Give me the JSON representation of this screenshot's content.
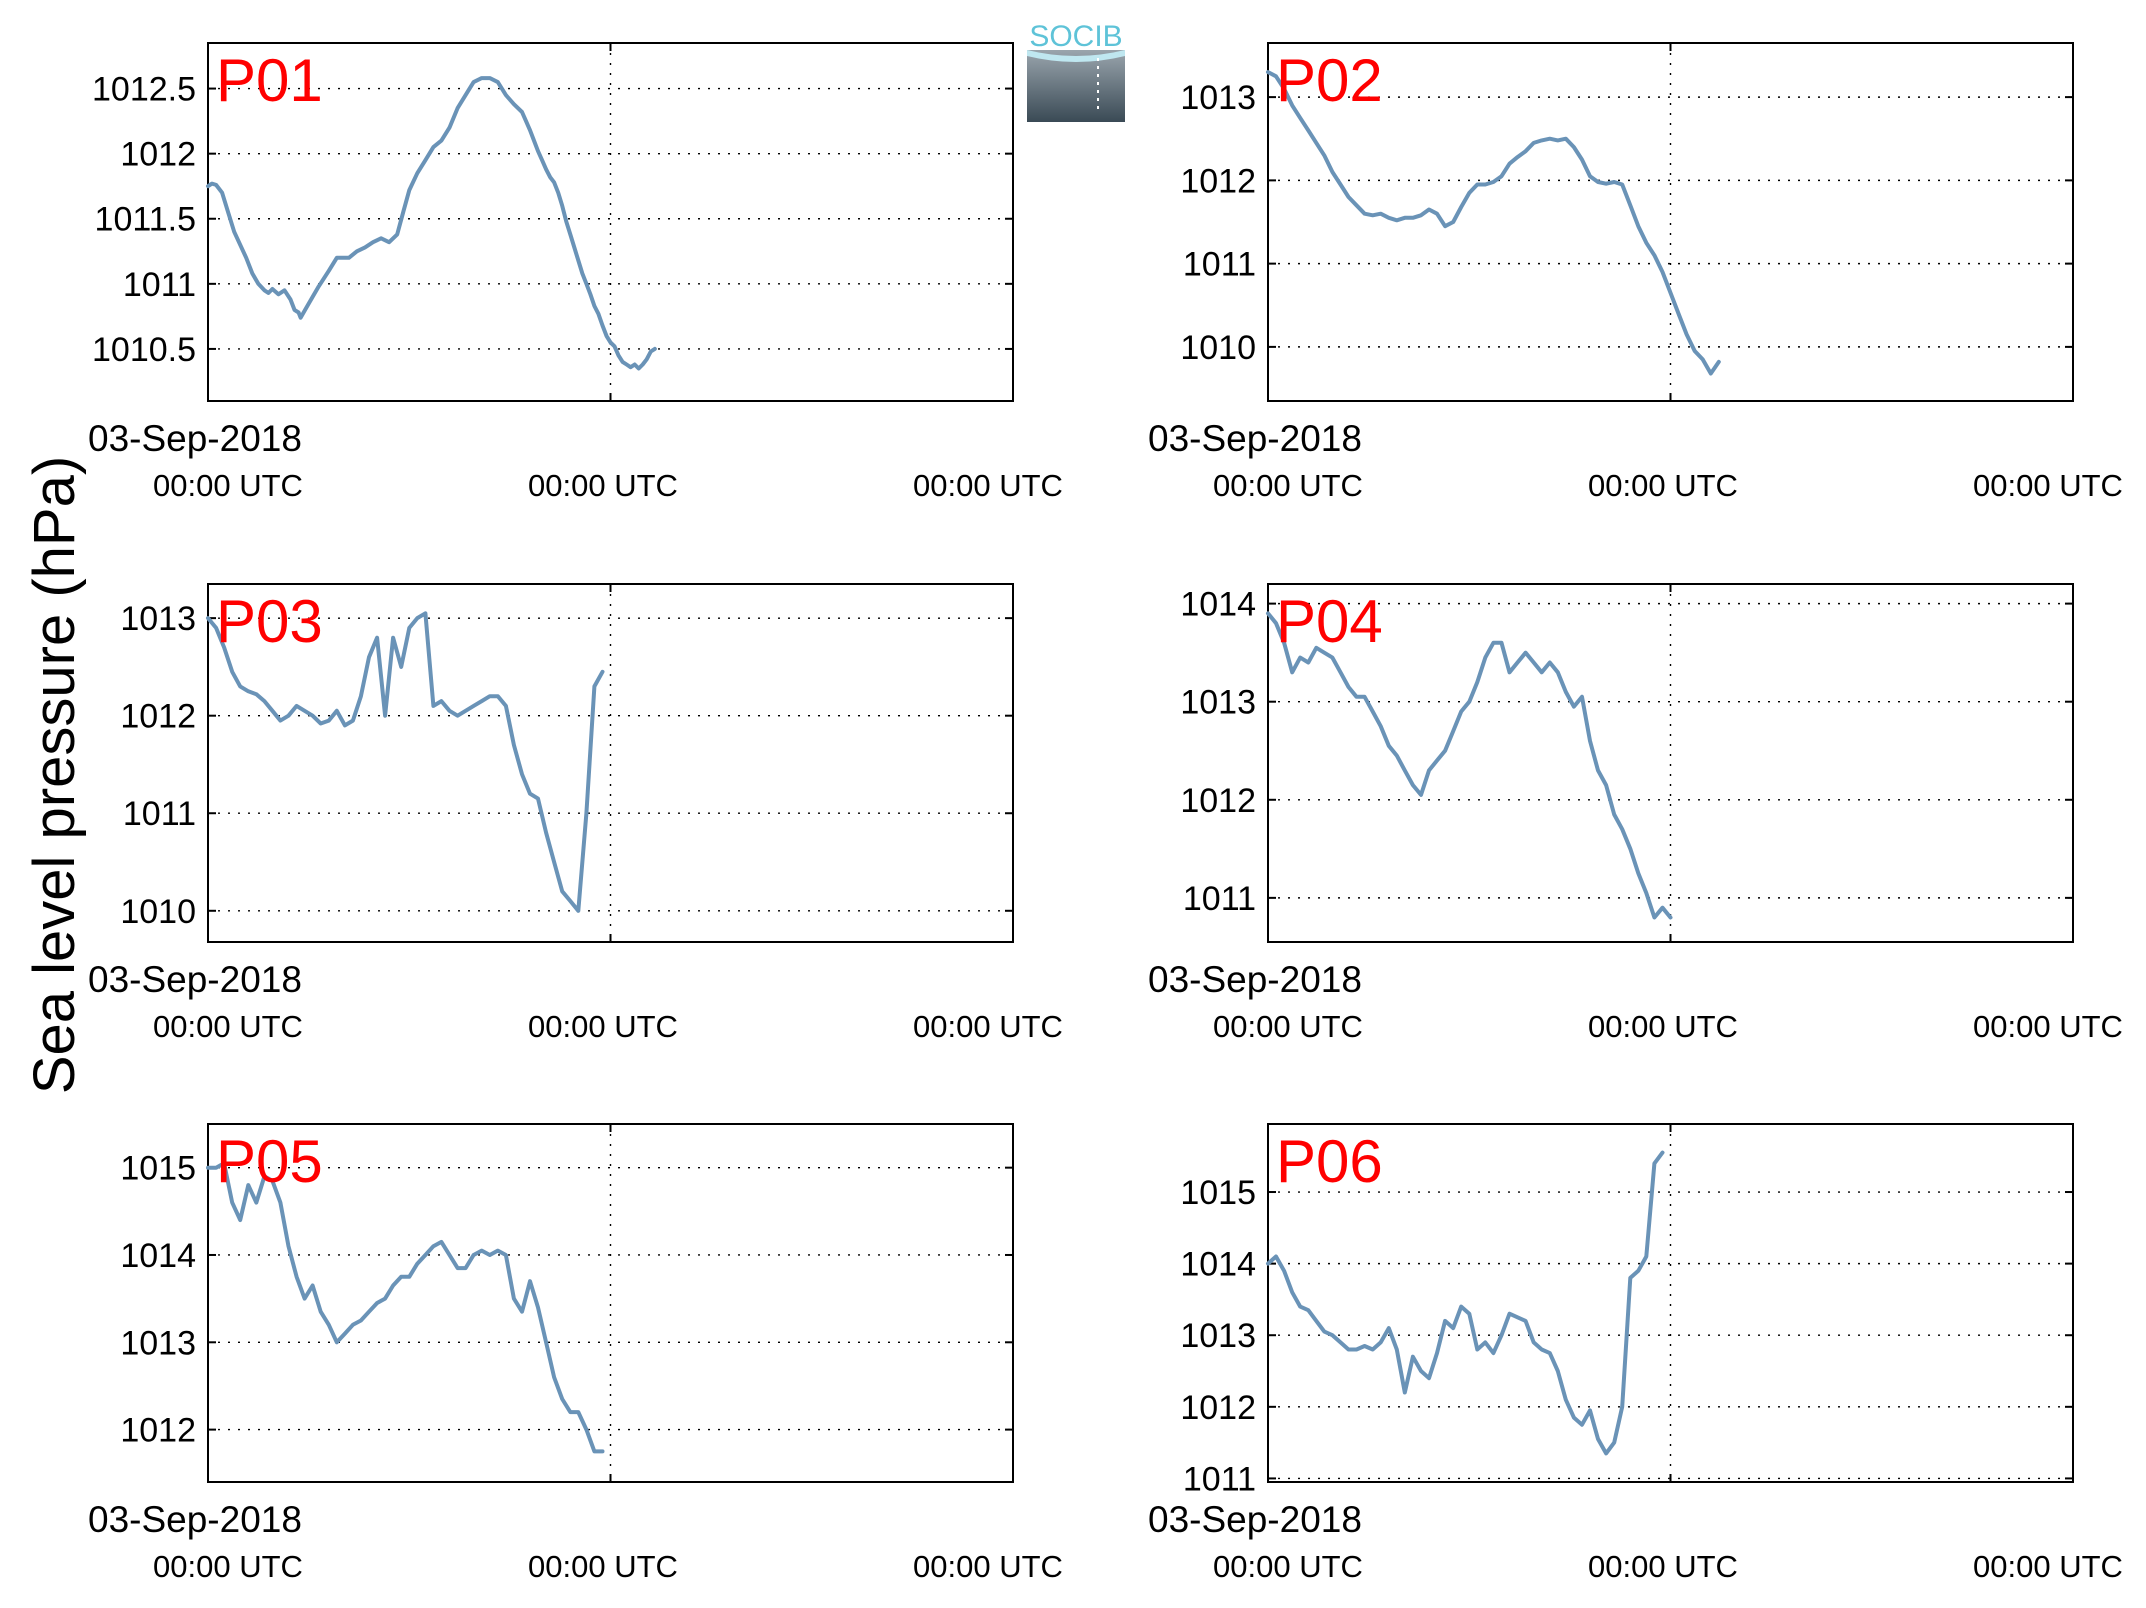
{
  "figure": {
    "ylabel": "Sea level pressure (hPa)",
    "logo_text": "SOCIB",
    "line_color": "#6a93b7",
    "panel_label_color": "#ff0000"
  },
  "chart_data": [
    {
      "type": "line",
      "name": "P01",
      "date_label": "03-Sep-2018",
      "x_ticks": [
        "00:00 UTC",
        "00:00 UTC",
        "00:00 UTC"
      ],
      "ylim": [
        1010.1,
        1012.85
      ],
      "yticks": [
        1010.5,
        1011,
        1011.5,
        1012,
        1012.5
      ],
      "ytick_labels": [
        "1010.5",
        "1011",
        "1011.5",
        "1012",
        "1012.5"
      ],
      "grid": true,
      "x": [
        0,
        0.1,
        0.2,
        0.35,
        0.5,
        0.65,
        0.8,
        0.95,
        1.1,
        1.25,
        1.4,
        1.5,
        1.6,
        1.75,
        1.9,
        2.05,
        2.15,
        2.25,
        2.3,
        2.45,
        2.6,
        2.75,
        3.0,
        3.2,
        3.5,
        3.7,
        3.9,
        4.1,
        4.3,
        4.5,
        4.7,
        4.85,
        5.0,
        5.2,
        5.4,
        5.6,
        5.8,
        6.0,
        6.2,
        6.4,
        6.6,
        6.8,
        7.0,
        7.2,
        7.4,
        7.6,
        7.8,
        7.9,
        8.0,
        8.1,
        8.2,
        8.3,
        8.4,
        8.5,
        8.6,
        8.7,
        8.8,
        8.9,
        9.0,
        9.1,
        9.2,
        9.3,
        9.4,
        9.5,
        9.6,
        9.7,
        9.8,
        9.9,
        10.0,
        10.1,
        10.2,
        10.3,
        10.4,
        10.5,
        10.6,
        10.7,
        10.8,
        10.9,
        11.0,
        11.1,
        11.2,
        11.3,
        11.4,
        11.5,
        11.6,
        11.7,
        11.8,
        11.9,
        12.0,
        12.1,
        12.2,
        12.3,
        12.4,
        12.5,
        12.6,
        12.7,
        12.8,
        12.9,
        13.0,
        13.1,
        13.2,
        13.3
      ],
      "y": [
        1011.75,
        1011.77,
        1011.76,
        1011.7,
        1011.55,
        1011.4,
        1011.3,
        1011.2,
        1011.08,
        1011.0,
        1010.95,
        1010.93,
        1010.96,
        1010.92,
        1010.95,
        1010.88,
        1010.8,
        1010.78,
        1010.74,
        1010.82,
        1010.9,
        1010.98,
        1011.1,
        1011.2,
        1011.2,
        1011.25,
        1011.28,
        1011.32,
        1011.35,
        1011.32,
        1011.38,
        1011.55,
        1011.72,
        1011.85,
        1011.95,
        1012.05,
        1012.1,
        1012.2,
        1012.35,
        1012.45,
        1012.55,
        1012.58,
        1012.58,
        1012.55,
        1012.45,
        1012.38,
        1012.32,
        1012.25,
        1012.18,
        1012.1,
        1012.02,
        1011.95,
        1011.88,
        1011.82,
        1011.78,
        1011.7,
        1011.6,
        1011.48,
        1011.38,
        1011.28,
        1011.18,
        1011.08,
        1011.0,
        1010.92,
        1010.83,
        1010.77,
        1010.68,
        1010.6,
        1010.55,
        1010.52,
        1010.45,
        1010.4,
        1010.38,
        1010.36,
        1010.38,
        1010.35,
        1010.38,
        1010.42,
        1010.48,
        1010.5,
        1010.5,
        1010.5,
        1010.5,
        1010.5,
        1010.5,
        1010.5,
        1010.5,
        1010.5,
        1010.5,
        1010.5,
        1010.5,
        1010.5,
        1010.5,
        1010.5,
        1010.5,
        1010.5,
        1010.5,
        1010.5,
        1010.5,
        1010.5,
        1010.5,
        1010.5
      ],
      "n_valid": 80
    },
    {
      "type": "line",
      "name": "P02",
      "date_label": "03-Sep-2018",
      "x_ticks": [
        "00:00 UTC",
        "00:00 UTC",
        "00:00 UTC"
      ],
      "ylim": [
        1009.35,
        1013.65
      ],
      "yticks": [
        1010,
        1011,
        1012,
        1013
      ],
      "ytick_labels": [
        "1010",
        "1011",
        "1012",
        "1013"
      ],
      "grid": true,
      "x": [
        0,
        0.2,
        0.4,
        0.6,
        0.8,
        1.0,
        1.2,
        1.4,
        1.6,
        1.8,
        2.0,
        2.2,
        2.4,
        2.6,
        2.8,
        3.0,
        3.2,
        3.4,
        3.6,
        3.8,
        4.0,
        4.2,
        4.4,
        4.6,
        4.8,
        5.0,
        5.2,
        5.4,
        5.6,
        5.8,
        6.0,
        6.2,
        6.4,
        6.6,
        6.8,
        7.0,
        7.2,
        7.4,
        7.6,
        7.8,
        8.0,
        8.2,
        8.4,
        8.6,
        8.8,
        9.0,
        9.2,
        9.4,
        9.6,
        9.8,
        10.0,
        10.2,
        10.4,
        10.6,
        10.8,
        11.0,
        11.2,
        11.4,
        11.6,
        11.8,
        12.0,
        12.2,
        12.4,
        12.6,
        12.8,
        13.0,
        13.2
      ],
      "y": [
        1013.3,
        1013.25,
        1013.1,
        1012.9,
        1012.75,
        1012.6,
        1012.45,
        1012.3,
        1012.1,
        1011.95,
        1011.8,
        1011.7,
        1011.6,
        1011.58,
        1011.6,
        1011.55,
        1011.52,
        1011.55,
        1011.55,
        1011.58,
        1011.65,
        1011.6,
        1011.45,
        1011.5,
        1011.68,
        1011.85,
        1011.95,
        1011.95,
        1011.98,
        1012.05,
        1012.2,
        1012.28,
        1012.35,
        1012.45,
        1012.48,
        1012.5,
        1012.48,
        1012.5,
        1012.4,
        1012.25,
        1012.05,
        1011.98,
        1011.96,
        1011.98,
        1011.95,
        1011.7,
        1011.45,
        1011.25,
        1011.1,
        1010.9,
        1010.65,
        1010.4,
        1010.15,
        1009.95,
        1009.85,
        1009.68,
        1009.82,
        1009.82,
        1009.82,
        1009.82,
        1009.82,
        1009.82,
        1009.82,
        1009.82,
        1009.82,
        1009.82,
        1009.82
      ],
      "n_valid": 57
    },
    {
      "type": "line",
      "name": "P03",
      "date_label": "03-Sep-2018",
      "x_ticks": [
        "00:00 UTC",
        "00:00 UTC",
        "00:00 UTC"
      ],
      "ylim": [
        1009.68,
        1013.35
      ],
      "yticks": [
        1010,
        1011,
        1012,
        1013
      ],
      "ytick_labels": [
        "1010",
        "1011",
        "1012",
        "1013"
      ],
      "grid": true,
      "x": [
        0,
        0.2,
        0.4,
        0.6,
        0.8,
        1.0,
        1.2,
        1.4,
        1.6,
        1.8,
        2.0,
        2.2,
        2.4,
        2.6,
        2.8,
        3.0,
        3.2,
        3.4,
        3.6,
        3.8,
        4.0,
        4.2,
        4.4,
        4.6,
        4.8,
        5.0,
        5.2,
        5.4,
        5.6,
        5.8,
        6.0,
        6.2,
        6.4,
        6.6,
        6.8,
        7.0,
        7.2,
        7.4,
        7.6,
        7.8,
        8.0,
        8.2,
        8.4,
        8.6,
        8.8,
        9.0,
        9.2,
        9.4,
        9.6,
        9.8,
        10.0,
        10.2,
        10.4,
        10.6,
        10.8,
        11.0,
        11.2,
        11.4,
        11.6,
        11.8,
        12.0,
        12.2,
        12.4,
        12.6,
        12.8,
        13.0,
        13.2
      ],
      "y": [
        1013.0,
        1012.9,
        1012.7,
        1012.45,
        1012.3,
        1012.25,
        1012.22,
        1012.15,
        1012.05,
        1011.95,
        1012.0,
        1012.1,
        1012.05,
        1012.0,
        1011.92,
        1011.95,
        1012.05,
        1011.9,
        1011.95,
        1012.2,
        1012.6,
        1012.8,
        1012.0,
        1012.8,
        1012.5,
        1012.9,
        1013.0,
        1013.05,
        1012.1,
        1012.15,
        1012.05,
        1012.0,
        1012.05,
        1012.1,
        1012.15,
        1012.2,
        1012.2,
        1012.1,
        1011.7,
        1011.4,
        1011.2,
        1011.15,
        1010.8,
        1010.5,
        1010.2,
        1010.1,
        1010.0,
        1011.0,
        1012.3,
        1012.45,
        1012.45,
        1012.45,
        1012.45,
        1012.45,
        1012.45,
        1012.45,
        1012.45,
        1012.45,
        1012.45,
        1012.45,
        1012.45,
        1012.45,
        1012.45,
        1012.45,
        1012.45,
        1012.45,
        1012.45
      ],
      "n_valid": 50
    },
    {
      "type": "line",
      "name": "P04",
      "date_label": "03-Sep-2018",
      "x_ticks": [
        "00:00 UTC",
        "00:00 UTC",
        "00:00 UTC"
      ],
      "ylim": [
        1010.55,
        1014.2
      ],
      "yticks": [
        1011,
        1012,
        1013,
        1014
      ],
      "ytick_labels": [
        "1011",
        "1012",
        "1013",
        "1014"
      ],
      "grid": true,
      "x": [
        0,
        0.2,
        0.4,
        0.6,
        0.8,
        1.0,
        1.2,
        1.4,
        1.6,
        1.8,
        2.0,
        2.2,
        2.4,
        2.6,
        2.8,
        3.0,
        3.2,
        3.4,
        3.6,
        3.8,
        4.0,
        4.2,
        4.4,
        4.6,
        4.8,
        5.0,
        5.2,
        5.4,
        5.6,
        5.8,
        6.0,
        6.2,
        6.4,
        6.6,
        6.8,
        7.0,
        7.2,
        7.4,
        7.6,
        7.8,
        8.0,
        8.2,
        8.4,
        8.6,
        8.8,
        9.0,
        9.2,
        9.4,
        9.6,
        9.8,
        10.0,
        10.2,
        10.4,
        10.6,
        10.8,
        11.0,
        11.2,
        11.4,
        11.6,
        11.8,
        12.0,
        12.2,
        12.4,
        12.6,
        12.8,
        13.0,
        13.2
      ],
      "y": [
        1013.9,
        1013.8,
        1013.6,
        1013.3,
        1013.45,
        1013.4,
        1013.55,
        1013.5,
        1013.45,
        1013.3,
        1013.15,
        1013.05,
        1013.05,
        1012.9,
        1012.75,
        1012.55,
        1012.45,
        1012.3,
        1012.15,
        1012.05,
        1012.3,
        1012.4,
        1012.5,
        1012.7,
        1012.9,
        1013.0,
        1013.2,
        1013.45,
        1013.6,
        1013.6,
        1013.3,
        1013.4,
        1013.5,
        1013.4,
        1013.3,
        1013.4,
        1013.3,
        1013.1,
        1012.95,
        1013.05,
        1012.6,
        1012.3,
        1012.15,
        1011.85,
        1011.7,
        1011.5,
        1011.25,
        1011.05,
        1010.8,
        1010.9,
        1010.8,
        1010.8,
        1010.8,
        1010.8,
        1010.8,
        1010.8,
        1010.8,
        1010.8,
        1010.8,
        1010.8,
        1010.8,
        1010.8,
        1010.8,
        1010.8,
        1010.8,
        1010.8,
        1010.8
      ],
      "n_valid": 51
    },
    {
      "type": "line",
      "name": "P05",
      "date_label": "03-Sep-2018",
      "x_ticks": [
        "00:00 UTC",
        "00:00 UTC",
        "00:00 UTC"
      ],
      "ylim": [
        1011.4,
        1015.5
      ],
      "yticks": [
        1012,
        1013,
        1014,
        1015
      ],
      "ytick_labels": [
        "1012",
        "1013",
        "1014",
        "1015"
      ],
      "grid": true,
      "x": [
        0,
        0.2,
        0.4,
        0.6,
        0.8,
        1.0,
        1.2,
        1.4,
        1.6,
        1.8,
        2.0,
        2.2,
        2.4,
        2.6,
        2.8,
        3.0,
        3.2,
        3.4,
        3.6,
        3.8,
        4.0,
        4.2,
        4.4,
        4.6,
        4.8,
        5.0,
        5.2,
        5.4,
        5.6,
        5.8,
        6.0,
        6.2,
        6.4,
        6.6,
        6.8,
        7.0,
        7.2,
        7.4,
        7.6,
        7.8,
        8.0,
        8.2,
        8.4,
        8.6,
        8.8,
        9.0,
        9.2,
        9.4,
        9.6,
        9.8,
        10.0,
        10.2,
        10.4,
        10.6,
        10.8,
        11.0,
        11.2,
        11.4,
        11.6,
        11.8,
        12.0,
        12.2,
        12.4,
        12.6,
        12.8,
        13.0,
        13.2
      ],
      "y": [
        1015.0,
        1015.0,
        1015.05,
        1014.6,
        1014.4,
        1014.8,
        1014.6,
        1014.9,
        1014.85,
        1014.6,
        1014.1,
        1013.75,
        1013.5,
        1013.65,
        1013.35,
        1013.2,
        1013.0,
        1013.1,
        1013.2,
        1013.25,
        1013.35,
        1013.45,
        1013.5,
        1013.65,
        1013.75,
        1013.75,
        1013.9,
        1014.0,
        1014.1,
        1014.15,
        1014.0,
        1013.85,
        1013.85,
        1014.0,
        1014.05,
        1014.0,
        1014.05,
        1014.0,
        1013.5,
        1013.35,
        1013.7,
        1013.4,
        1013.0,
        1012.6,
        1012.35,
        1012.2,
        1012.2,
        1012.0,
        1011.75,
        1011.75,
        1011.75,
        1011.75,
        1011.75,
        1011.75,
        1011.75,
        1011.75,
        1011.75,
        1011.75,
        1011.75,
        1011.75,
        1011.75,
        1011.75,
        1011.75,
        1011.75,
        1011.75,
        1011.75,
        1011.75
      ],
      "n_valid": 50
    },
    {
      "type": "line",
      "name": "P06",
      "date_label": "03-Sep-2018",
      "x_ticks": [
        "00:00 UTC",
        "00:00 UTC",
        "00:00 UTC"
      ],
      "ylim": [
        1010.95,
        1015.95
      ],
      "yticks": [
        1011,
        1012,
        1013,
        1014,
        1015
      ],
      "ytick_labels": [
        "1011",
        "1012",
        "1013",
        "1014",
        "1015"
      ],
      "grid": true,
      "x": [
        0,
        0.2,
        0.4,
        0.6,
        0.8,
        1.0,
        1.2,
        1.4,
        1.6,
        1.8,
        2.0,
        2.2,
        2.4,
        2.6,
        2.8,
        3.0,
        3.2,
        3.4,
        3.6,
        3.8,
        4.0,
        4.2,
        4.4,
        4.6,
        4.8,
        5.0,
        5.2,
        5.4,
        5.6,
        5.8,
        6.0,
        6.2,
        6.4,
        6.6,
        6.8,
        7.0,
        7.2,
        7.4,
        7.6,
        7.8,
        8.0,
        8.2,
        8.4,
        8.6,
        8.8,
        9.0,
        9.2,
        9.4,
        9.6,
        9.8,
        10.0,
        10.2,
        10.4,
        10.6,
        10.8,
        11.0,
        11.2,
        11.4,
        11.6,
        11.8,
        12.0,
        12.2,
        12.4,
        12.6,
        12.8,
        13.0,
        13.2
      ],
      "y": [
        1014.0,
        1014.1,
        1013.9,
        1013.6,
        1013.4,
        1013.35,
        1013.2,
        1013.05,
        1013.0,
        1012.9,
        1012.8,
        1012.8,
        1012.85,
        1012.8,
        1012.9,
        1013.1,
        1012.8,
        1012.2,
        1012.7,
        1012.5,
        1012.4,
        1012.75,
        1013.2,
        1013.1,
        1013.4,
        1013.3,
        1012.8,
        1012.9,
        1012.75,
        1013.0,
        1013.3,
        1013.25,
        1013.2,
        1012.9,
        1012.8,
        1012.75,
        1012.5,
        1012.1,
        1011.85,
        1011.75,
        1011.95,
        1011.55,
        1011.35,
        1011.5,
        1012.0,
        1013.8,
        1013.9,
        1014.1,
        1015.4,
        1015.55,
        1015.55,
        1015.55,
        1015.55,
        1015.55,
        1015.55,
        1015.55,
        1015.55,
        1015.55,
        1015.55,
        1015.55,
        1015.55,
        1015.55,
        1015.55,
        1015.55,
        1015.55,
        1015.55,
        1015.55
      ],
      "n_valid": 50
    }
  ]
}
